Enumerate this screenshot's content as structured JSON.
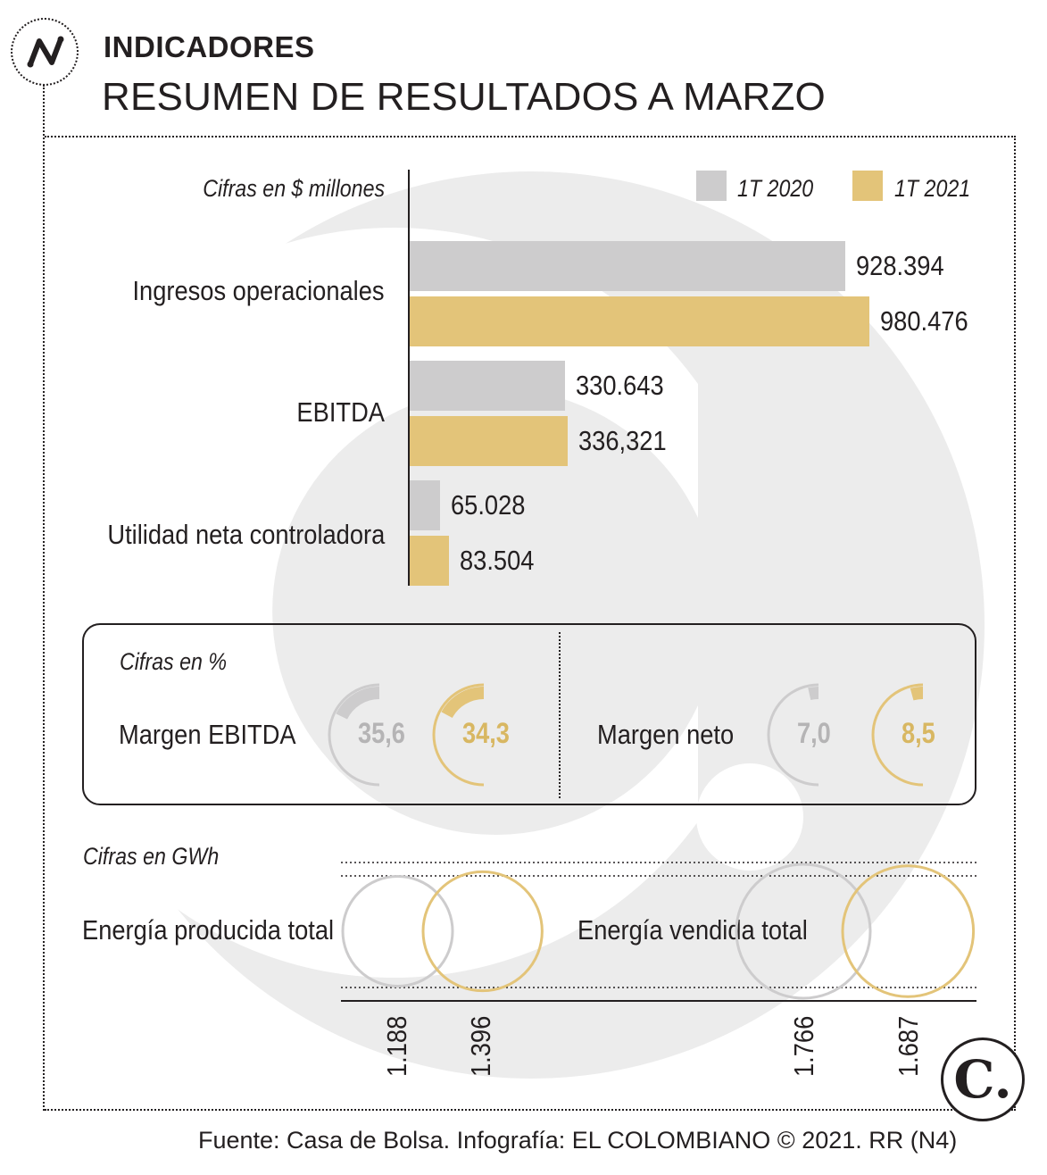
{
  "header": {
    "kicker": "INDICADORES",
    "title": "RESUMEN DE RESULTADOS A MARZO"
  },
  "icons": {
    "header_icon": "line-trend-icon",
    "brand_icon": "el-colombiano-logo"
  },
  "colors": {
    "series_2020": "#cdcccd",
    "series_2021": "#e3c479",
    "ink": "#231f20",
    "watermark": "#ececec"
  },
  "chart_data": [
    {
      "type": "bar",
      "orientation": "horizontal",
      "unit_note": "Cifras en $ millones",
      "categories": [
        "Ingresos operacionales",
        "EBITDA",
        "Utilidad neta controladora"
      ],
      "series": [
        {
          "name": "1T 2020",
          "values": [
            928394,
            330643,
            65028
          ],
          "labels": [
            "928.394",
            "330.643",
            "65.028"
          ]
        },
        {
          "name": "1T 2021",
          "values": [
            980476,
            336321,
            83504
          ],
          "labels": [
            "980.476",
            "336,321",
            "83.504"
          ]
        }
      ],
      "legend_position": "top-right",
      "grid": false
    },
    {
      "type": "donut",
      "unit_note": "Cifras en %",
      "groups": [
        {
          "label": "Margen EBITDA",
          "series": [
            {
              "name": "1T 2020",
              "value": 35.6,
              "label": "35,6"
            },
            {
              "name": "1T 2021",
              "value": 34.3,
              "label": "34,3"
            }
          ]
        },
        {
          "label": "Margen neto",
          "series": [
            {
              "name": "1T 2020",
              "value": 7.0,
              "label": "7,0"
            },
            {
              "name": "1T 2021",
              "value": 8.5,
              "label": "8,5"
            }
          ]
        }
      ]
    },
    {
      "type": "bubble",
      "unit_note": "Cifras en GWh",
      "groups": [
        {
          "label": "Energía producida total",
          "series": [
            {
              "name": "1T 2020",
              "value": 1188,
              "label": "1.188"
            },
            {
              "name": "1T 2021",
              "value": 1396,
              "label": "1.396"
            }
          ]
        },
        {
          "label": "Energía vendida total",
          "series": [
            {
              "name": "1T 2020",
              "value": 1766,
              "label": "1.766"
            },
            {
              "name": "1T 2021",
              "value": 1687,
              "label": "1.687"
            }
          ]
        }
      ]
    }
  ],
  "footer": {
    "source": "Fuente: Casa de Bolsa. Infografía: EL COLOMBIANO © 2021. RR (N4)",
    "brand_mark": "C."
  }
}
